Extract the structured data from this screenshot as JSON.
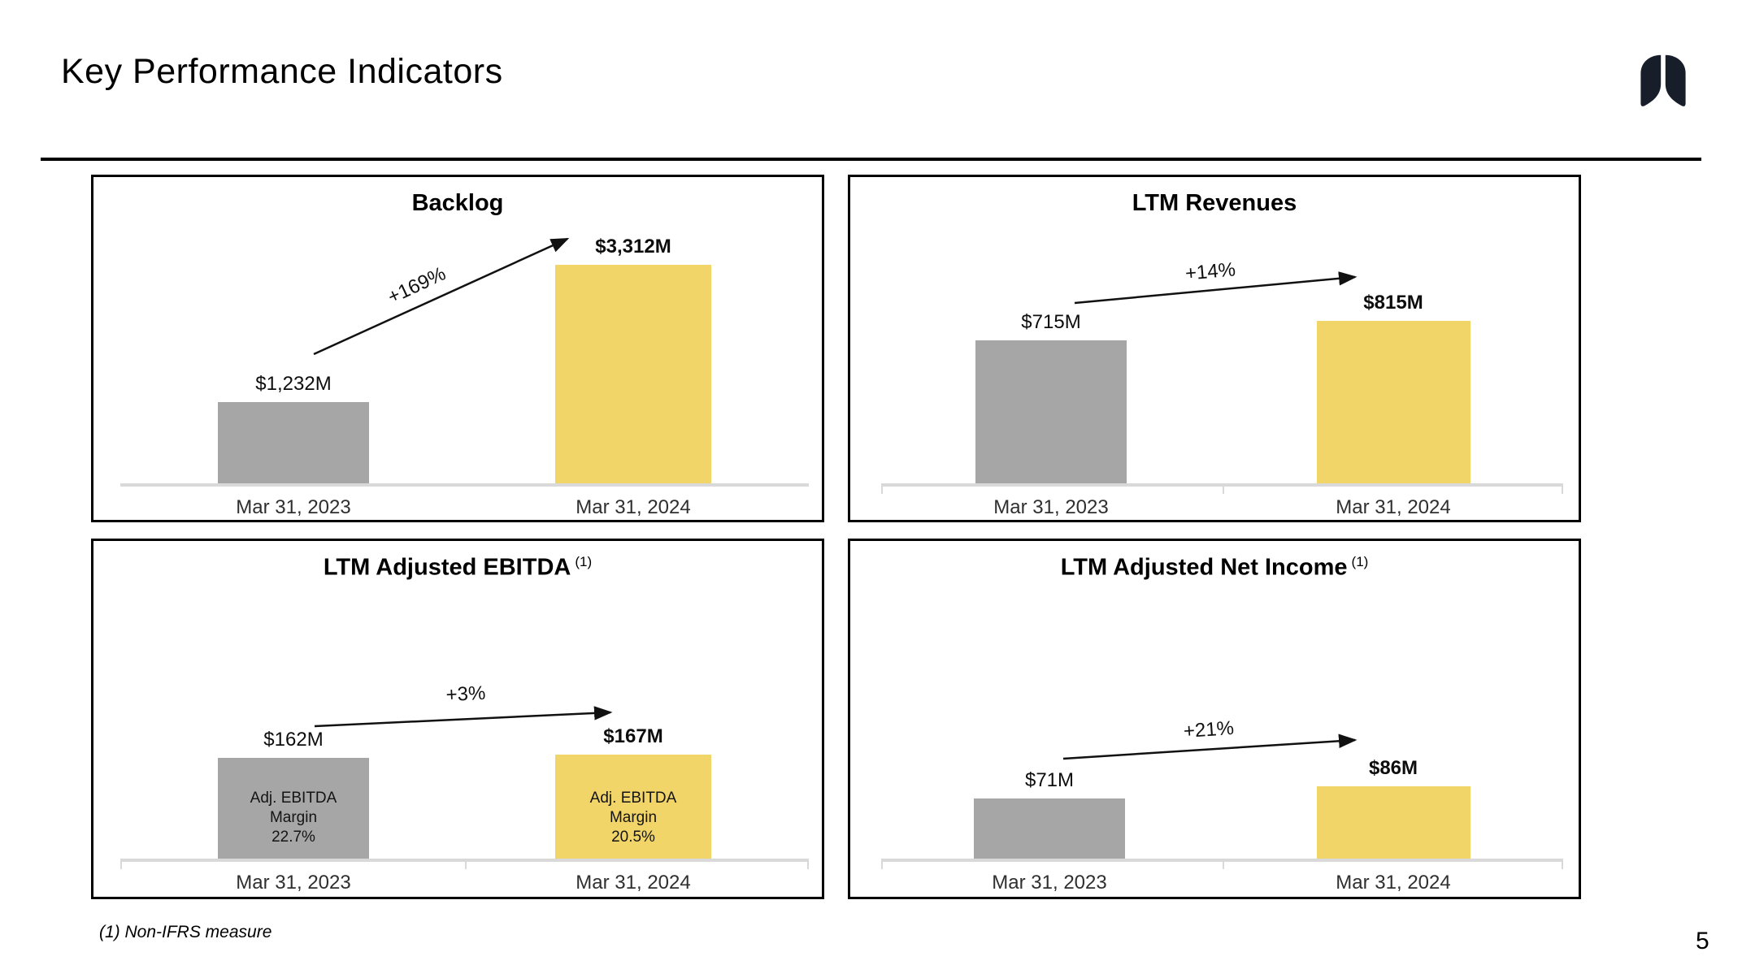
{
  "slide": {
    "title": "Key Performance Indicators",
    "footnote": "(1) Non-IFRS measure",
    "page_number": "5"
  },
  "logo": {
    "name": "lungs-logo",
    "color": "#171E29"
  },
  "colors": {
    "bar_2023": "#A6A6A6",
    "bar_2024": "#F2D569",
    "axis_line": "#D9D9D9",
    "arrow": "#111111"
  },
  "chart_data": [
    {
      "type": "bar",
      "title": "Backlog",
      "title_superscript": "",
      "categories": [
        "Mar 31, 2023",
        "Mar 31, 2024"
      ],
      "values": [
        1232,
        3312
      ],
      "value_labels": [
        "$1,232M",
        "$3,312M"
      ],
      "change_annotation": "+169%",
      "bar_annotations": null,
      "bar_colors": [
        "#A6A6A6",
        "#F2D569"
      ],
      "unit": "$M",
      "grid": false,
      "legend": "none"
    },
    {
      "type": "bar",
      "title": "LTM Revenues",
      "title_superscript": "",
      "categories": [
        "Mar 31, 2023",
        "Mar 31, 2024"
      ],
      "values": [
        715,
        815
      ],
      "value_labels": [
        "$715M",
        "$815M"
      ],
      "change_annotation": "+14%",
      "bar_annotations": null,
      "bar_colors": [
        "#A6A6A6",
        "#F2D569"
      ],
      "unit": "$M",
      "grid": false,
      "legend": "none"
    },
    {
      "type": "bar",
      "title": "LTM Adjusted EBITDA",
      "title_superscript": "(1)",
      "categories": [
        "Mar 31, 2023",
        "Mar 31, 2024"
      ],
      "values": [
        162,
        167
      ],
      "value_labels": [
        "$162M",
        "$167M"
      ],
      "change_annotation": "+3%",
      "bar_annotations": [
        [
          "Adj. EBITDA",
          "Margin",
          "22.7%"
        ],
        [
          "Adj. EBITDA",
          "Margin",
          "20.5%"
        ]
      ],
      "bar_colors": [
        "#A6A6A6",
        "#F2D569"
      ],
      "unit": "$M",
      "grid": false,
      "legend": "none"
    },
    {
      "type": "bar",
      "title": "LTM Adjusted Net Income",
      "title_superscript": "(1)",
      "categories": [
        "Mar 31, 2023",
        "Mar 31, 2024"
      ],
      "values": [
        71,
        86
      ],
      "value_labels": [
        "$71M",
        "$86M"
      ],
      "change_annotation": "+21%",
      "bar_annotations": null,
      "bar_colors": [
        "#A6A6A6",
        "#F2D569"
      ],
      "unit": "$M",
      "grid": false,
      "legend": "none"
    }
  ]
}
